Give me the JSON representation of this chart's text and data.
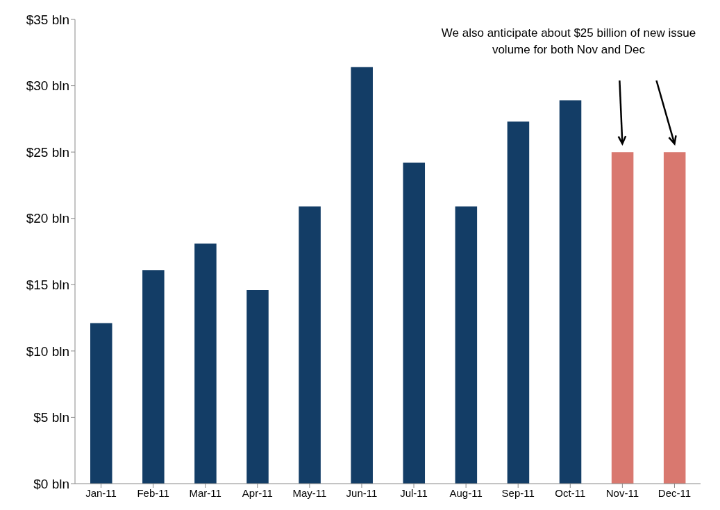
{
  "chart_data": {
    "type": "bar",
    "categories": [
      "Jan-11",
      "Feb-11",
      "Mar-11",
      "Apr-11",
      "May-11",
      "Jun-11",
      "Jul-11",
      "Aug-11",
      "Sep-11",
      "Oct-11",
      "Nov-11",
      "Dec-11"
    ],
    "values": [
      12.1,
      16.1,
      18.1,
      14.6,
      20.9,
      31.4,
      24.2,
      20.9,
      27.3,
      28.9,
      25,
      25
    ],
    "colors": [
      "#133d66",
      "#133d66",
      "#133d66",
      "#133d66",
      "#133d66",
      "#133d66",
      "#133d66",
      "#133d66",
      "#133d66",
      "#133d66",
      "#d9786f",
      "#d9786f"
    ],
    "ylim": [
      0,
      35
    ],
    "yticks": [
      {
        "value": 0,
        "label": "$0 bln"
      },
      {
        "value": 5,
        "label": "$5 bln"
      },
      {
        "value": 10,
        "label": "$10 bln"
      },
      {
        "value": 15,
        "label": "$15 bln"
      },
      {
        "value": 20,
        "label": "$20 bln"
      },
      {
        "value": 25,
        "label": "$25 bln"
      },
      {
        "value": 30,
        "label": "$30 bln"
      },
      {
        "value": 35,
        "label": "$35 bln"
      }
    ],
    "grid": false,
    "annotations": [
      "We also anticipate about $25 billion of new issue volume for both Nov and Dec"
    ]
  }
}
